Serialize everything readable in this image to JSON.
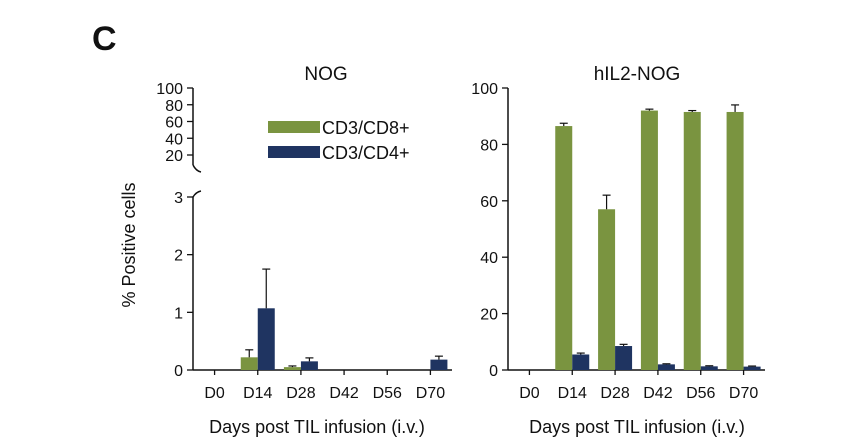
{
  "figure": {
    "panel_letter": "C"
  },
  "colors": {
    "cd8": "#7a9440",
    "cd4": "#1f3461",
    "axis": "#111111"
  },
  "chart_data": [
    {
      "type": "bar",
      "title": "NOG",
      "xlabel": "Days post TIL infusion (i.v.)",
      "ylabel": "% Positive cells",
      "categories": [
        "D0",
        "D14",
        "D28",
        "D42",
        "D56",
        "D70"
      ],
      "y_axis": {
        "broken": true,
        "lower_range": [
          0,
          3
        ],
        "lower_ticks": [
          "0",
          "1",
          "2",
          "3"
        ],
        "upper_range": [
          20,
          100
        ],
        "upper_ticks": [
          "20",
          "40",
          "60",
          "80",
          "100"
        ]
      },
      "legend": {
        "placement": "top-right",
        "entries": [
          "CD3/CD8+",
          "CD3/CD4+"
        ]
      },
      "series": [
        {
          "name": "CD3/CD8+",
          "values": [
            0,
            0.22,
            0.05,
            0,
            0,
            0
          ],
          "errors": [
            0,
            0.13,
            0.02,
            0,
            0,
            0
          ]
        },
        {
          "name": "CD3/CD4+",
          "values": [
            0,
            1.07,
            0.15,
            0,
            0,
            0.18
          ],
          "errors": [
            0,
            0.68,
            0.06,
            0,
            0,
            0.06
          ]
        }
      ],
      "grid": false
    },
    {
      "type": "bar",
      "title": "hIL2-NOG",
      "xlabel": "Days post TIL infusion (i.v.)",
      "ylabel": "",
      "categories": [
        "D0",
        "D14",
        "D28",
        "D42",
        "D56",
        "D70"
      ],
      "ylim": [
        0,
        100
      ],
      "yticks": [
        "0",
        "20",
        "40",
        "60",
        "80",
        "100"
      ],
      "series": [
        {
          "name": "CD3/CD8+",
          "values": [
            0,
            86.5,
            57,
            92,
            91.5,
            91.5
          ],
          "errors": [
            0,
            1,
            5,
            0.5,
            0.5,
            2.5
          ]
        },
        {
          "name": "CD3/CD4+",
          "values": [
            0,
            5.5,
            8.5,
            2,
            1.3,
            1.2
          ],
          "errors": [
            0,
            0.5,
            0.6,
            0.2,
            0.2,
            0.2
          ]
        }
      ],
      "grid": false
    }
  ]
}
